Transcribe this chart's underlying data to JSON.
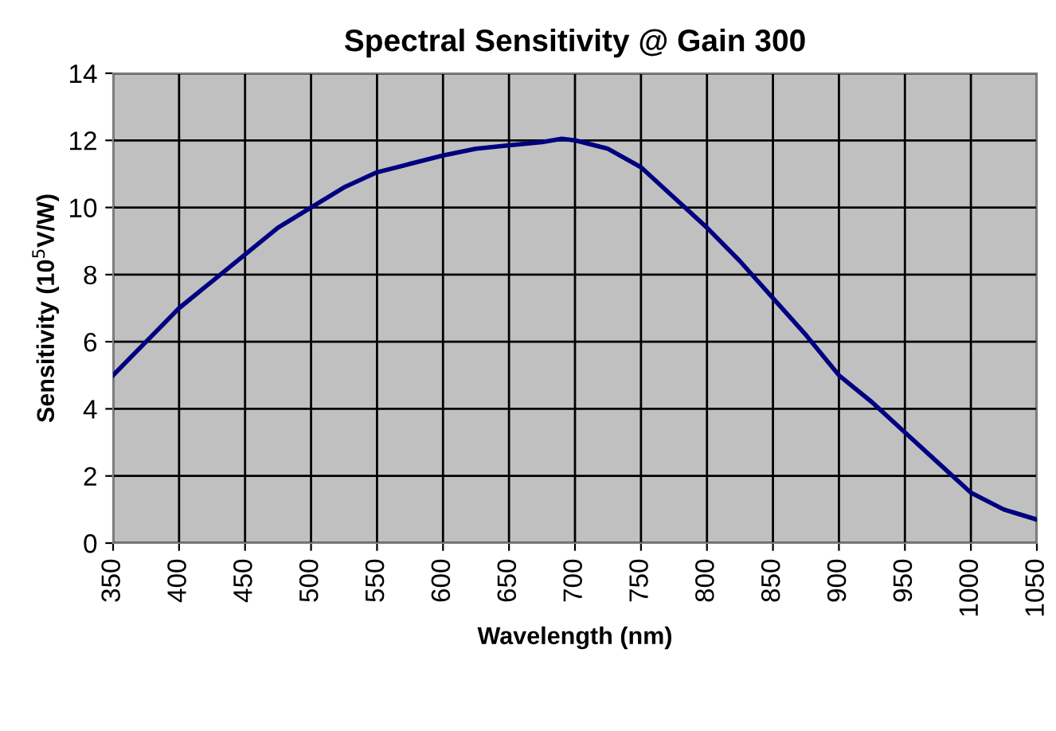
{
  "chart_data": {
    "type": "line",
    "title": "Spectral Sensitivity @ Gain 300",
    "xlabel": "Wavelength (nm)",
    "ylabel": "Sensitivity (10$^{5}$V/W)",
    "x": [
      350,
      375,
      400,
      425,
      450,
      475,
      500,
      525,
      550,
      575,
      600,
      625,
      650,
      675,
      690,
      700,
      725,
      750,
      775,
      800,
      825,
      850,
      875,
      900,
      925,
      950,
      975,
      1000,
      1025,
      1050
    ],
    "series": [
      {
        "color": "#000080",
        "values": [
          5.0,
          6.0,
          7.0,
          7.8,
          8.6,
          9.4,
          10.0,
          10.6,
          11.05,
          11.3,
          11.55,
          11.75,
          11.85,
          11.95,
          12.05,
          12.0,
          11.75,
          11.2,
          10.3,
          9.4,
          8.4,
          7.3,
          6.2,
          5.0,
          4.2,
          3.3,
          2.4,
          1.5,
          1.0,
          0.7
        ]
      }
    ],
    "xlim": [
      350,
      1050
    ],
    "ylim": [
      0,
      14
    ],
    "xticks": [
      350,
      400,
      450,
      500,
      550,
      600,
      650,
      700,
      750,
      800,
      850,
      900,
      950,
      1000,
      1050
    ],
    "yticks": [
      0,
      2,
      4,
      6,
      8,
      10,
      12,
      14
    ],
    "grid": true,
    "legend": false,
    "marker": "none",
    "line_style": "solid"
  }
}
